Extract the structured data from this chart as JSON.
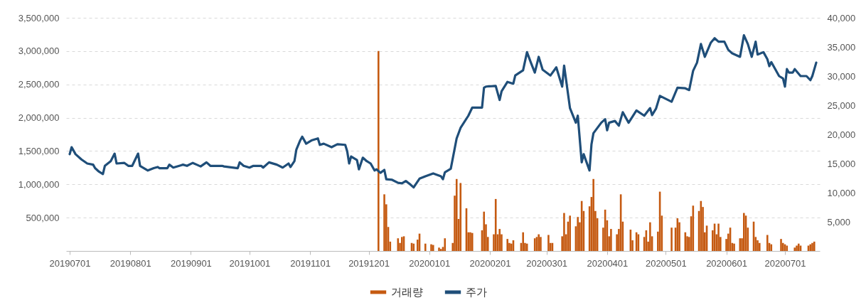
{
  "chart_data": {
    "type": "bar",
    "series": [
      {
        "name": "거래량",
        "color": "#c55a11",
        "x": [
          "2019-12-06",
          "2019-12-09",
          "2019-12-10",
          "2019-12-11",
          "2019-12-12",
          "2019-12-16",
          "2019-12-17",
          "2019-12-18",
          "2019-12-19",
          "2019-12-23",
          "2019-12-24",
          "2019-12-26",
          "2019-12-27",
          "2019-12-30",
          "2020-01-02",
          "2020-01-03",
          "2020-01-06",
          "2020-01-07",
          "2020-01-08",
          "2020-01-09",
          "2020-01-13",
          "2020-01-14",
          "2020-01-15",
          "2020-01-16",
          "2020-01-17",
          "2020-01-20",
          "2020-01-21",
          "2020-01-22",
          "2020-01-23",
          "2020-01-28",
          "2020-01-29",
          "2020-01-30",
          "2020-01-31",
          "2020-02-03",
          "2020-02-04",
          "2020-02-05",
          "2020-02-06",
          "2020-02-07",
          "2020-02-10",
          "2020-02-11",
          "2020-02-12",
          "2020-02-13",
          "2020-02-17",
          "2020-02-18",
          "2020-02-19",
          "2020-02-20",
          "2020-02-24",
          "2020-02-25",
          "2020-02-26",
          "2020-02-27",
          "2020-03-02",
          "2020-03-03",
          "2020-03-04",
          "2020-03-09",
          "2020-03-10",
          "2020-03-11",
          "2020-03-12",
          "2020-03-13",
          "2020-03-16",
          "2020-03-17",
          "2020-03-18",
          "2020-03-19",
          "2020-03-20",
          "2020-03-23",
          "2020-03-24",
          "2020-03-25",
          "2020-03-26",
          "2020-03-27",
          "2020-03-30",
          "2020-03-31",
          "2020-04-01",
          "2020-04-02",
          "2020-04-03",
          "2020-04-06",
          "2020-04-07",
          "2020-04-08",
          "2020-04-09",
          "2020-04-13",
          "2020-04-14",
          "2020-04-16",
          "2020-04-17",
          "2020-04-20",
          "2020-04-21",
          "2020-04-22",
          "2020-04-23",
          "2020-04-24",
          "2020-04-27",
          "2020-04-28",
          "2020-04-29",
          "2020-05-04",
          "2020-05-06",
          "2020-05-07",
          "2020-05-08",
          "2020-05-11",
          "2020-05-12",
          "2020-05-13",
          "2020-05-14",
          "2020-05-15",
          "2020-05-18",
          "2020-05-19",
          "2020-05-20",
          "2020-05-21",
          "2020-05-22",
          "2020-05-25",
          "2020-05-26",
          "2020-05-27",
          "2020-05-28",
          "2020-05-29",
          "2020-06-01",
          "2020-06-02",
          "2020-06-03",
          "2020-06-04",
          "2020-06-05",
          "2020-06-08",
          "2020-06-09",
          "2020-06-10",
          "2020-06-11",
          "2020-06-12",
          "2020-06-15",
          "2020-06-16",
          "2020-06-17",
          "2020-06-18",
          "2020-06-22",
          "2020-06-23",
          "2020-06-24",
          "2020-06-29",
          "2020-06-30",
          "2020-07-01",
          "2020-07-02",
          "2020-07-06",
          "2020-07-07",
          "2020-07-08",
          "2020-07-09",
          "2020-07-13",
          "2020-07-14",
          "2020-07-15",
          "2020-07-16"
        ],
        "values": [
          3000000,
          850000,
          700000,
          360000,
          140000,
          190000,
          120000,
          210000,
          220000,
          120000,
          110000,
          170000,
          260000,
          110000,
          100000,
          90000,
          50000,
          30000,
          60000,
          190000,
          120000,
          830000,
          1080000,
          480000,
          1020000,
          640000,
          280000,
          280000,
          270000,
          310000,
          590000,
          400000,
          210000,
          250000,
          780000,
          250000,
          330000,
          250000,
          180000,
          120000,
          110000,
          160000,
          120000,
          280000,
          120000,
          110000,
          190000,
          210000,
          250000,
          210000,
          240000,
          120000,
          120000,
          220000,
          570000,
          250000,
          440000,
          530000,
          370000,
          510000,
          430000,
          750000,
          600000,
          670000,
          810000,
          1080000,
          600000,
          490000,
          350000,
          620000,
          460000,
          220000,
          330000,
          250000,
          330000,
          850000,
          440000,
          320000,
          160000,
          280000,
          250000,
          210000,
          310000,
          140000,
          430000,
          220000,
          290000,
          890000,
          530000,
          350000,
          350000,
          490000,
          430000,
          280000,
          220000,
          210000,
          520000,
          680000,
          600000,
          750000,
          660000,
          280000,
          380000,
          310000,
          410000,
          250000,
          410000,
          210000,
          180000,
          260000,
          350000,
          120000,
          110000,
          190000,
          190000,
          570000,
          530000,
          350000,
          440000,
          210000,
          160000,
          120000,
          240000,
          120000,
          100000,
          180000,
          120000,
          100000,
          80000,
          50000,
          80000,
          110000,
          80000,
          80000,
          100000,
          120000,
          140000
        ]
      },
      {
        "name": "주가",
        "type": "line",
        "axis": "y2",
        "color": "#1f4e79",
        "x": [
          "2019-07-01",
          "2019-07-02",
          "2019-07-04",
          "2019-07-07",
          "2019-07-10",
          "2019-07-13",
          "2019-07-14",
          "2019-07-16",
          "2019-07-18",
          "2019-07-19",
          "2019-07-22",
          "2019-07-24",
          "2019-07-25",
          "2019-07-29",
          "2019-07-31",
          "2019-08-02",
          "2019-08-05",
          "2019-08-06",
          "2019-08-10",
          "2019-08-13",
          "2019-08-15",
          "2019-08-16",
          "2019-08-20",
          "2019-08-21",
          "2019-08-23",
          "2019-08-28",
          "2019-08-30",
          "2019-09-02",
          "2019-09-04",
          "2019-09-06",
          "2019-09-09",
          "2019-09-11",
          "2019-09-17",
          "2019-09-18",
          "2019-09-25",
          "2019-09-26",
          "2019-09-28",
          "2019-10-01",
          "2019-10-03",
          "2019-10-07",
          "2019-10-08",
          "2019-10-11",
          "2019-10-15",
          "2019-10-18",
          "2019-10-21",
          "2019-10-22",
          "2019-10-24",
          "2019-10-25",
          "2019-10-27",
          "2019-10-28",
          "2019-10-30",
          "2019-11-02",
          "2019-11-05",
          "2019-11-06",
          "2019-11-08",
          "2019-11-12",
          "2019-11-15",
          "2019-11-19",
          "2019-11-20",
          "2019-11-21",
          "2019-11-22",
          "2019-11-25",
          "2019-11-26",
          "2019-11-28",
          "2019-11-30",
          "2019-12-02",
          "2019-12-04",
          "2019-12-05",
          "2019-12-07",
          "2019-12-09",
          "2019-12-10",
          "2019-12-13",
          "2019-12-16",
          "2019-12-18",
          "2019-12-20",
          "2019-12-22",
          "2019-12-24",
          "2019-12-27",
          "2019-12-30",
          "2020-01-03",
          "2020-01-07",
          "2020-01-08",
          "2020-01-09",
          "2020-01-12",
          "2020-01-15",
          "2020-01-17",
          "2020-01-21",
          "2020-01-23",
          "2020-01-28",
          "2020-01-29",
          "2020-01-30",
          "2020-02-04",
          "2020-02-06",
          "2020-02-07",
          "2020-02-10",
          "2020-02-13",
          "2020-02-14",
          "2020-02-18",
          "2020-02-20",
          "2020-02-22",
          "2020-02-24",
          "2020-02-26",
          "2020-02-28",
          "2020-03-03",
          "2020-03-06",
          "2020-03-09",
          "2020-03-10",
          "2020-03-13",
          "2020-03-16",
          "2020-03-17",
          "2020-03-19",
          "2020-03-20",
          "2020-03-23",
          "2020-03-24",
          "2020-03-25",
          "2020-03-29",
          "2020-03-31",
          "2020-04-01",
          "2020-04-02",
          "2020-04-05",
          "2020-04-07",
          "2020-04-09",
          "2020-04-12",
          "2020-04-16",
          "2020-04-20",
          "2020-04-23",
          "2020-04-24",
          "2020-04-26",
          "2020-04-28",
          "2020-05-04",
          "2020-05-07",
          "2020-05-11",
          "2020-05-13",
          "2020-05-15",
          "2020-05-17",
          "2020-05-19",
          "2020-05-21",
          "2020-05-24",
          "2020-05-26",
          "2020-05-28",
          "2020-05-31",
          "2020-06-02",
          "2020-06-04",
          "2020-06-08",
          "2020-06-10",
          "2020-06-12",
          "2020-06-14",
          "2020-06-16",
          "2020-06-17",
          "2020-06-20",
          "2020-06-22",
          "2020-06-23",
          "2020-06-24",
          "2020-06-28",
          "2020-06-30",
          "2020-07-01",
          "2020-07-02",
          "2020-07-03",
          "2020-07-05",
          "2020-07-06",
          "2020-07-09",
          "2020-07-12",
          "2020-07-14",
          "2020-07-15",
          "2020-07-17"
        ],
        "values": [
          16600,
          17800,
          16600,
          15700,
          15000,
          14800,
          14200,
          13600,
          13200,
          14600,
          15400,
          16700,
          15000,
          15100,
          14600,
          14600,
          16700,
          14600,
          13800,
          14200,
          14400,
          14200,
          14200,
          14800,
          14300,
          14800,
          14600,
          15100,
          14800,
          14500,
          15200,
          14600,
          14600,
          14500,
          14200,
          15200,
          14600,
          14300,
          14600,
          14600,
          14300,
          15200,
          14800,
          14300,
          15000,
          14400,
          15400,
          17400,
          19000,
          19600,
          18400,
          19000,
          19300,
          18200,
          18400,
          17800,
          18300,
          18200,
          17100,
          15000,
          16200,
          15600,
          14000,
          16000,
          15400,
          15000,
          13800,
          14000,
          13400,
          13900,
          12300,
          12200,
          11700,
          11600,
          12000,
          11500,
          10900,
          12400,
          12800,
          13300,
          12800,
          12300,
          13500,
          14100,
          19300,
          21100,
          23200,
          24600,
          24600,
          28000,
          28200,
          28300,
          25900,
          27400,
          29000,
          28700,
          30100,
          31000,
          34100,
          32300,
          30600,
          33300,
          31100,
          30100,
          31500,
          28200,
          31800,
          24500,
          22000,
          23200,
          15200,
          16600,
          13800,
          18300,
          20200,
          22000,
          22600,
          20700,
          22000,
          22300,
          21500,
          23800,
          22000,
          24100,
          23200,
          24500,
          23300,
          24400,
          26600,
          25600,
          28000,
          27900,
          27600,
          30900,
          32300,
          35500,
          33300,
          35700,
          36500,
          35900,
          35900,
          34500,
          33900,
          33300,
          37000,
          35500,
          33300,
          35900,
          33700,
          34100,
          32900,
          31700,
          32400,
          30000,
          29600,
          28200,
          31200,
          30600,
          30600,
          31200,
          30000,
          30000,
          29300,
          30000,
          32300
        ]
      }
    ],
    "xlim": [
      "2019-07-01",
      "2020-07-17"
    ],
    "xticks": [
      {
        "value": "2019-07-01",
        "label": "20190701"
      },
      {
        "value": "2019-08-01",
        "label": "20190801"
      },
      {
        "value": "2019-09-01",
        "label": "20190901"
      },
      {
        "value": "2019-10-01",
        "label": "20191001"
      },
      {
        "value": "2019-11-01",
        "label": "20191101"
      },
      {
        "value": "2019-12-01",
        "label": "20191201"
      },
      {
        "value": "2020-01-01",
        "label": "20200101"
      },
      {
        "value": "2020-02-01",
        "label": "20200201"
      },
      {
        "value": "2020-03-01",
        "label": "20200301"
      },
      {
        "value": "2020-04-01",
        "label": "20200401"
      },
      {
        "value": "2020-05-01",
        "label": "20200501"
      },
      {
        "value": "2020-06-01",
        "label": "20200601"
      },
      {
        "value": "2020-07-01",
        "label": "20200701"
      }
    ],
    "ylim": [
      0,
      3500000
    ],
    "yticks": [
      {
        "value": 500000,
        "label": "500,000"
      },
      {
        "value": 1000000,
        "label": "1,000,000"
      },
      {
        "value": 1500000,
        "label": "1,500,000"
      },
      {
        "value": 2000000,
        "label": "2,000,000"
      },
      {
        "value": 2500000,
        "label": "2,500,000"
      },
      {
        "value": 3000000,
        "label": "3,000,000"
      },
      {
        "value": 3500000,
        "label": "3,500,000"
      }
    ],
    "y2lim": [
      0,
      40000
    ],
    "y2ticks": [
      {
        "value": 5000,
        "label": "5,000"
      },
      {
        "value": 10000,
        "label": "10,000"
      },
      {
        "value": 15000,
        "label": "15,000"
      },
      {
        "value": 20000,
        "label": "20,000"
      },
      {
        "value": 25000,
        "label": "25,000"
      },
      {
        "value": 30000,
        "label": "30,000"
      },
      {
        "value": 35000,
        "label": "35,000"
      },
      {
        "value": 40000,
        "label": "40,000"
      }
    ],
    "grid": "y",
    "legend": "bottom"
  }
}
